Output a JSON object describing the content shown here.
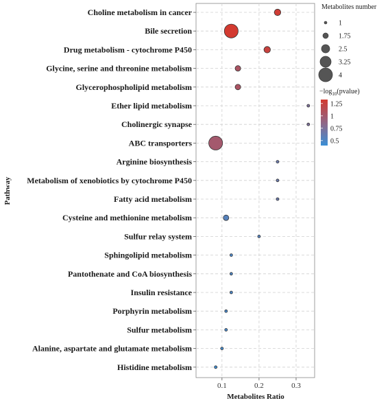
{
  "chart_data": {
    "type": "scatter",
    "title": "",
    "xlabel": "Metabolites Ratio",
    "ylabel": "Pathway",
    "xlim": [
      0.03,
      0.35
    ],
    "xticks": [
      0.1,
      0.2,
      0.3
    ],
    "xtick_labels": [
      "0.1",
      "0.2",
      "0.3"
    ],
    "grid": true,
    "legend_position": "right",
    "size_legend": {
      "title": "Metabolites number",
      "values": [
        1,
        1.75,
        2.5,
        3.25,
        4
      ],
      "labels": [
        "1",
        "1.75",
        "2.5",
        "3.25",
        "4"
      ]
    },
    "color_legend": {
      "title_prefix": "−log",
      "title_sub": "10",
      "title_suffix": "(pvalue)",
      "range": [
        0.4,
        1.33
      ],
      "ticks": [
        1.25,
        1,
        0.75,
        0.5
      ],
      "tick_labels": [
        "1.25",
        "1",
        "0.75",
        "0.5"
      ],
      "low_color": "#3a8fd6",
      "mid_color": "#8a6a8e",
      "high_color": "#d33a30"
    },
    "points": [
      {
        "pathway": "Choline metabolism in cancer",
        "ratio": 0.25,
        "count": 2,
        "neglog10p": 1.3
      },
      {
        "pathway": "Bile secretion",
        "ratio": 0.125,
        "count": 4,
        "neglog10p": 1.33
      },
      {
        "pathway": "Drug metabolism - cytochrome P450",
        "ratio": 0.222,
        "count": 2,
        "neglog10p": 1.25
      },
      {
        "pathway": "Glycine, serine and threonine metabolism",
        "ratio": 0.143,
        "count": 1.75,
        "neglog10p": 1.05
      },
      {
        "pathway": "Glycerophospholipid metabolism",
        "ratio": 0.143,
        "count": 1.75,
        "neglog10p": 1.05
      },
      {
        "pathway": "Ether lipid metabolism",
        "ratio": 0.333,
        "count": 1,
        "neglog10p": 0.75
      },
      {
        "pathway": "Cholinergic synapse",
        "ratio": 0.333,
        "count": 1,
        "neglog10p": 0.75
      },
      {
        "pathway": "ABC transporters",
        "ratio": 0.083,
        "count": 4,
        "neglog10p": 1.0
      },
      {
        "pathway": "Arginine biosynthesis",
        "ratio": 0.25,
        "count": 1,
        "neglog10p": 0.65
      },
      {
        "pathway": "Metabolism of xenobiotics by cytochrome P450",
        "ratio": 0.25,
        "count": 1,
        "neglog10p": 0.65
      },
      {
        "pathway": "Fatty acid metabolism",
        "ratio": 0.25,
        "count": 1,
        "neglog10p": 0.65
      },
      {
        "pathway": "Cysteine and methionine metabolism",
        "ratio": 0.111,
        "count": 1.75,
        "neglog10p": 0.55
      },
      {
        "pathway": "Sulfur relay system",
        "ratio": 0.2,
        "count": 1,
        "neglog10p": 0.55
      },
      {
        "pathway": "Sphingolipid metabolism",
        "ratio": 0.125,
        "count": 1,
        "neglog10p": 0.5
      },
      {
        "pathway": "Pantothenate and CoA biosynthesis",
        "ratio": 0.125,
        "count": 1,
        "neglog10p": 0.5
      },
      {
        "pathway": "Insulin resistance",
        "ratio": 0.125,
        "count": 1,
        "neglog10p": 0.5
      },
      {
        "pathway": "Porphyrin metabolism",
        "ratio": 0.111,
        "count": 1,
        "neglog10p": 0.48
      },
      {
        "pathway": "Sulfur metabolism",
        "ratio": 0.111,
        "count": 1,
        "neglog10p": 0.48
      },
      {
        "pathway": "Alanine, aspartate and glutamate metabolism",
        "ratio": 0.1,
        "count": 1,
        "neglog10p": 0.45
      },
      {
        "pathway": "Histidine metabolism",
        "ratio": 0.083,
        "count": 1,
        "neglog10p": 0.42
      }
    ]
  }
}
